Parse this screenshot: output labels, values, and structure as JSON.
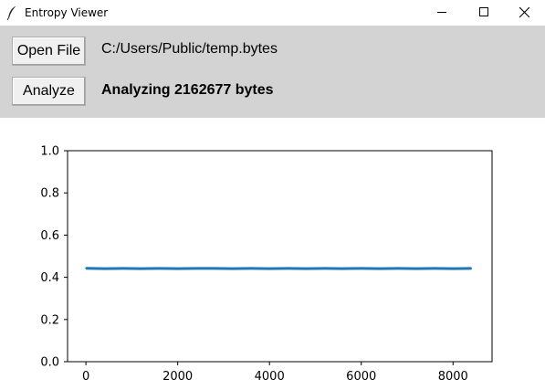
{
  "window": {
    "title": "Entropy Viewer"
  },
  "toolbar": {
    "open_label": "Open File",
    "analyze_label": "Analyze",
    "file_path": "C:/Users/Public/temp.bytes",
    "status": "Analyzing 2162677 bytes"
  },
  "chart_data": {
    "type": "line",
    "title": "",
    "xlabel": "",
    "ylabel": "",
    "xlim": [
      -400,
      8850
    ],
    "ylim": [
      0.0,
      1.0
    ],
    "x_ticks": [
      0,
      2000,
      4000,
      6000,
      8000
    ],
    "x_tick_labels": [
      "0",
      "2000",
      "4000",
      "6000",
      "8000"
    ],
    "y_ticks": [
      0.0,
      0.2,
      0.4,
      0.6,
      0.8,
      1.0
    ],
    "y_tick_labels": [
      "0.0",
      "0.2",
      "0.4",
      "0.6",
      "0.8",
      "1.0"
    ],
    "grid": false,
    "series": [
      {
        "color": "#1f77b4",
        "x": [
          0,
          400,
          800,
          1200,
          1600,
          2000,
          2400,
          2800,
          3200,
          3600,
          4000,
          4400,
          4800,
          5200,
          5600,
          6000,
          6400,
          6800,
          7200,
          7600,
          8000,
          8400
        ],
        "y": [
          0.443,
          0.441,
          0.442,
          0.441,
          0.442,
          0.441,
          0.442,
          0.442,
          0.441,
          0.442,
          0.441,
          0.442,
          0.441,
          0.442,
          0.441,
          0.442,
          0.441,
          0.442,
          0.441,
          0.442,
          0.441,
          0.442
        ]
      }
    ]
  }
}
